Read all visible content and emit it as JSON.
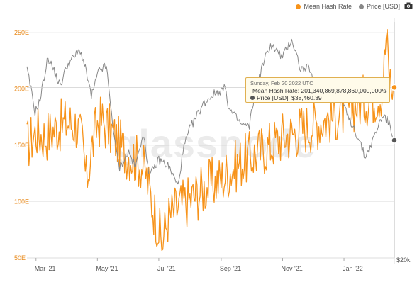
{
  "legend": {
    "hash_label": "Mean Hash Rate",
    "price_label": "Price [USD]",
    "hash_color": "#f7931a",
    "price_color": "#888888",
    "camera_icon": "camera-icon"
  },
  "watermark": "glassnode",
  "tooltip": {
    "date": "Sunday, Feb 20 2022 UTC",
    "hash_text": "Mean Hash Rate: 201,340,869,878,860,000,000/s",
    "price_text": "Price [USD]: $38,460.39"
  },
  "right_axis_label": "$20k",
  "chart_data": {
    "type": "line",
    "x_ticks": [
      "Mar '21",
      "May '21",
      "Jul '21",
      "Sep '21",
      "Nov '21",
      "Jan '22"
    ],
    "x_tick_dates": [
      "2021-03-01",
      "2021-05-01",
      "2021-07-01",
      "2021-09-01",
      "2021-11-01",
      "2022-01-01"
    ],
    "x_range": [
      "2021-02-20",
      "2022-02-20"
    ],
    "y_left": {
      "ticks": [
        "250E",
        "200E",
        "150E",
        "100E",
        "50E"
      ],
      "tick_values": [
        250,
        200,
        150,
        100,
        50
      ],
      "range": [
        50,
        250
      ],
      "unit": "EH/s"
    },
    "y_right": {
      "ticks": [
        "$20k"
      ],
      "tick_values": [
        20000
      ],
      "scale": "log",
      "range": [
        20000,
        70000
      ]
    },
    "grid": true,
    "legend_position": "top-right",
    "series": [
      {
        "name": "Mean Hash Rate",
        "axis": "left",
        "color": "#f7931a",
        "points": [
          [
            "2021-02-20",
            150
          ],
          [
            "2021-03-01",
            162
          ],
          [
            "2021-03-10",
            158
          ],
          [
            "2021-03-20",
            165
          ],
          [
            "2021-04-01",
            170
          ],
          [
            "2021-04-10",
            168
          ],
          [
            "2021-04-16",
            152
          ],
          [
            "2021-04-20",
            118
          ],
          [
            "2021-04-25",
            145
          ],
          [
            "2021-05-01",
            170
          ],
          [
            "2021-05-05",
            172
          ],
          [
            "2021-05-12",
            165
          ],
          [
            "2021-05-20",
            155
          ],
          [
            "2021-05-28",
            145
          ],
          [
            "2021-06-05",
            140
          ],
          [
            "2021-06-12",
            135
          ],
          [
            "2021-06-18",
            125
          ],
          [
            "2021-06-24",
            100
          ],
          [
            "2021-06-30",
            80
          ],
          [
            "2021-07-04",
            62
          ],
          [
            "2021-07-10",
            85
          ],
          [
            "2021-07-20",
            95
          ],
          [
            "2021-08-01",
            102
          ],
          [
            "2021-08-10",
            108
          ],
          [
            "2021-08-20",
            115
          ],
          [
            "2021-09-01",
            120
          ],
          [
            "2021-09-10",
            128
          ],
          [
            "2021-09-20",
            135
          ],
          [
            "2021-10-01",
            140
          ],
          [
            "2021-10-10",
            145
          ],
          [
            "2021-10-20",
            150
          ],
          [
            "2021-11-01",
            158
          ],
          [
            "2021-11-10",
            160
          ],
          [
            "2021-11-20",
            165
          ],
          [
            "2021-12-01",
            168
          ],
          [
            "2021-12-10",
            172
          ],
          [
            "2021-12-20",
            175
          ],
          [
            "2022-01-01",
            180
          ],
          [
            "2022-01-10",
            185
          ],
          [
            "2022-01-20",
            190
          ],
          [
            "2022-01-30",
            192
          ],
          [
            "2022-02-08",
            198
          ],
          [
            "2022-02-12",
            247
          ],
          [
            "2022-02-15",
            215
          ],
          [
            "2022-02-18",
            195
          ],
          [
            "2022-02-20",
            201.34
          ]
        ]
      },
      {
        "name": "Price [USD]",
        "axis": "right",
        "color": "#888888",
        "points": [
          [
            "2021-02-20",
            57000
          ],
          [
            "2021-02-28",
            45000
          ],
          [
            "2021-03-05",
            48000
          ],
          [
            "2021-03-13",
            61000
          ],
          [
            "2021-03-25",
            52000
          ],
          [
            "2021-04-01",
            58500
          ],
          [
            "2021-04-14",
            63500
          ],
          [
            "2021-04-20",
            56000
          ],
          [
            "2021-04-25",
            49000
          ],
          [
            "2021-05-03",
            57000
          ],
          [
            "2021-05-10",
            58000
          ],
          [
            "2021-05-13",
            49000
          ],
          [
            "2021-05-19",
            37000
          ],
          [
            "2021-05-23",
            33000
          ],
          [
            "2021-06-01",
            36000
          ],
          [
            "2021-06-08",
            33000
          ],
          [
            "2021-06-15",
            40000
          ],
          [
            "2021-06-22",
            31500
          ],
          [
            "2021-07-01",
            34500
          ],
          [
            "2021-07-10",
            33500
          ],
          [
            "2021-07-20",
            29800
          ],
          [
            "2021-07-26",
            37000
          ],
          [
            "2021-08-01",
            41000
          ],
          [
            "2021-08-14",
            47000
          ],
          [
            "2021-08-23",
            49500
          ],
          [
            "2021-09-06",
            51500
          ],
          [
            "2021-09-08",
            46000
          ],
          [
            "2021-09-21",
            42000
          ],
          [
            "2021-09-29",
            41500
          ],
          [
            "2021-10-05",
            51000
          ],
          [
            "2021-10-15",
            61000
          ],
          [
            "2021-10-20",
            65500
          ],
          [
            "2021-11-01",
            61000
          ],
          [
            "2021-11-10",
            67500
          ],
          [
            "2021-11-19",
            57000
          ],
          [
            "2021-11-28",
            57500
          ],
          [
            "2021-12-04",
            49000
          ],
          [
            "2021-12-15",
            48500
          ],
          [
            "2021-12-27",
            51000
          ],
          [
            "2022-01-05",
            43500
          ],
          [
            "2022-01-10",
            41800
          ],
          [
            "2022-01-22",
            35000
          ],
          [
            "2022-01-28",
            37500
          ],
          [
            "2022-02-09",
            44500
          ],
          [
            "2022-02-14",
            42500
          ],
          [
            "2022-02-18",
            40000
          ],
          [
            "2022-02-20",
            38460.39
          ]
        ]
      }
    ]
  }
}
